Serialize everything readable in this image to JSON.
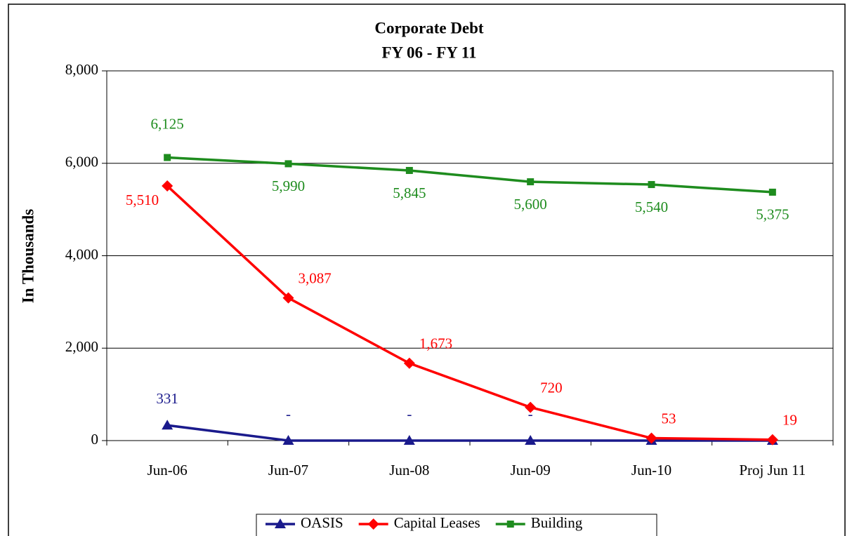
{
  "chart_data": {
    "type": "line",
    "title": "Corporate Debt",
    "subtitle": "FY 06 - FY 11",
    "y_label": "In Thousands",
    "categories": [
      "Jun-06",
      "Jun-07",
      "Jun-08",
      "Jun-09",
      "Jun-10",
      "Proj Jun 11"
    ],
    "series": [
      {
        "name": "OASIS",
        "color": "#1a1a8c",
        "marker": "triangle",
        "values": [
          331,
          0,
          0,
          0,
          0,
          0
        ],
        "value_labels": [
          "331",
          "-",
          "-",
          "-",
          null,
          null
        ]
      },
      {
        "name": "Capital Leases",
        "color": "#ff0000",
        "marker": "diamond",
        "values": [
          5510,
          3087,
          1673,
          720,
          53,
          19
        ],
        "value_labels": [
          "5,510",
          "3,087",
          "1,673",
          "720",
          "53",
          "19"
        ]
      },
      {
        "name": "Building",
        "color": "#1e8c1e",
        "marker": "square",
        "values": [
          6125,
          5990,
          5845,
          5600,
          5540,
          5375
        ],
        "value_labels": [
          "6,125",
          "5,990",
          "5,845",
          "5,600",
          "5,540",
          "5,375"
        ]
      }
    ],
    "ylim": [
      0,
      8000
    ],
    "yticks": [
      0,
      {
        "value": 2000,
        "label": "2,000"
      },
      {
        "value": 4000,
        "label": "4,000"
      },
      {
        "value": 6000,
        "label": "6,000"
      },
      {
        "value": 8000,
        "label": "8,000"
      }
    ],
    "grid": true,
    "legend": "bottom"
  }
}
